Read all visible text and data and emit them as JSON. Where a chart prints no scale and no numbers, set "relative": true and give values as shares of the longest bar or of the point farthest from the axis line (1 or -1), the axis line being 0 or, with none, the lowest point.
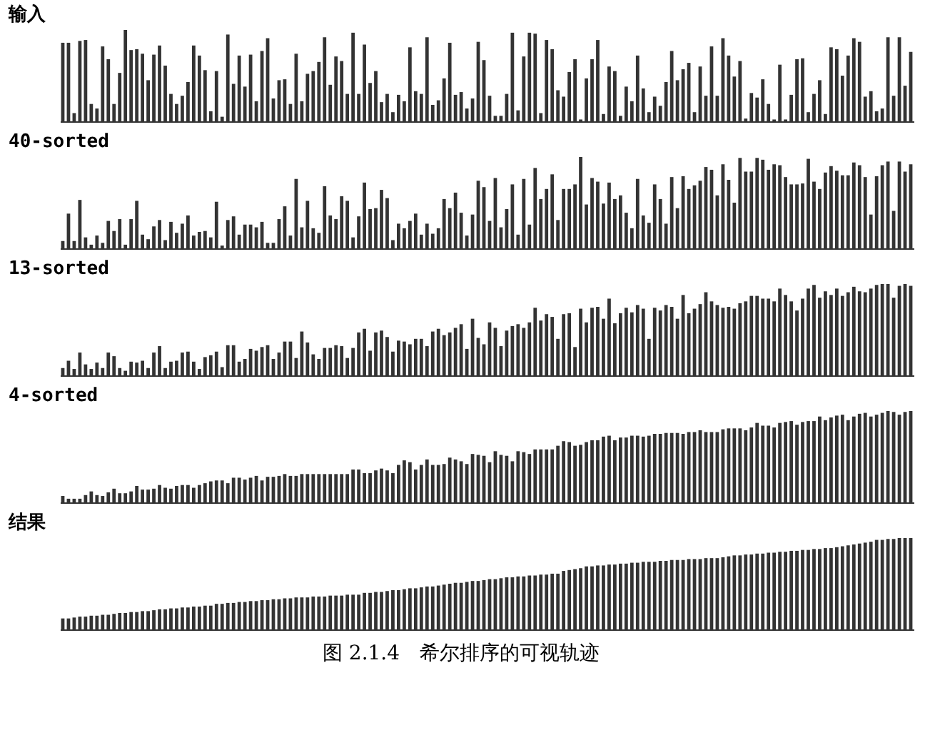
{
  "chart_data": [
    {
      "type": "bar",
      "relative": true,
      "title": "输入",
      "color": "#333333",
      "categories": [
        null,
        null,
        null,
        null,
        null,
        null,
        null,
        null,
        null,
        null,
        null,
        null,
        null,
        null,
        null,
        null,
        null,
        null,
        null,
        null,
        null,
        null,
        null,
        null,
        null,
        null,
        null,
        null,
        null,
        null,
        null,
        null,
        null,
        null,
        null,
        null,
        null,
        null,
        null,
        null,
        null,
        null,
        null,
        null,
        null,
        null,
        null,
        null,
        null,
        null,
        null,
        null,
        null,
        null,
        null,
        null,
        null,
        null,
        null,
        null,
        null,
        null,
        null,
        null,
        null,
        null,
        null,
        null,
        null,
        null,
        null,
        null,
        null,
        null,
        null,
        null,
        null,
        null,
        null,
        null,
        null,
        null,
        null,
        null,
        null,
        null,
        null,
        null,
        null,
        null,
        null,
        null,
        null,
        null,
        null,
        null,
        null,
        null,
        null,
        null,
        null,
        null,
        null,
        null,
        null,
        null,
        null,
        null,
        null,
        null,
        null,
        null,
        null,
        null,
        null,
        null,
        null,
        null,
        null,
        null,
        null,
        null,
        null,
        null,
        null,
        null,
        null,
        null,
        null,
        null,
        null,
        null,
        null,
        null,
        null,
        null,
        null,
        null,
        null,
        null,
        null,
        null,
        null,
        null,
        null,
        null,
        null,
        null,
        null,
        null
      ],
      "values": [
        0.86,
        0.86,
        0.09,
        0.88,
        0.89,
        0.19,
        0.14,
        0.82,
        0.68,
        0.19,
        0.53,
        1,
        0.78,
        0.79,
        0.74,
        0.45,
        0.73,
        0.83,
        0.61,
        0.3,
        0.19,
        0.28,
        0.43,
        0.83,
        0.72,
        0.56,
        0.11,
        0.55,
        0.05,
        0.95,
        0.41,
        0.72,
        0.38,
        0.73,
        0.22,
        0.77,
        0.91,
        0.25,
        0.45,
        0.46,
        0.19,
        0.74,
        0.22,
        0.52,
        0.55,
        0.65,
        0.92,
        0.4,
        0.71,
        0.66,
        0.3,
        0.97,
        0.3,
        0.84,
        0.42,
        0.55,
        0.21,
        0.3,
        0.1,
        0.29,
        0.22,
        0.81,
        0.33,
        0.3,
        0.92,
        0.18,
        0.23,
        0.47,
        0.86,
        0.29,
        0.32,
        0.14,
        0.25,
        0.87,
        0.67,
        0.28,
        0.06,
        0.06,
        0.3,
        0.97,
        0.12,
        0.71,
        0.97,
        0.96,
        0.09,
        0.89,
        0.79,
        0.34,
        0.27,
        0.54,
        0.68,
        0.02,
        0.47,
        0.68,
        0.89,
        0.08,
        0.6,
        0.55,
        0.06,
        0.38,
        0.22,
        0.72,
        0.36,
        0.1,
        0.27,
        0.17,
        0.43,
        0.77,
        0.45,
        0.57,
        0.64,
        0.1,
        0.6,
        0.28,
        0.82,
        0.28,
        0.91,
        0.72,
        0.49,
        0.66,
        0.03,
        0.31,
        0.26,
        0.46,
        0.19,
        0.02,
        0.62,
        0.02,
        0.29,
        0.68,
        0.69,
        0.1,
        0.3,
        0.45,
        0.08,
        0.81,
        0.79,
        0.5,
        0.72,
        0.91,
        0.87,
        0.27,
        0.33,
        0.11,
        0.14,
        0.92,
        0.28,
        0.92,
        0.39,
        0.76
      ]
    },
    {
      "type": "bar",
      "relative": true,
      "title": "40-sorted",
      "color": "#333333",
      "categories": [
        null,
        null,
        null,
        null,
        null,
        null,
        null,
        null,
        null,
        null,
        null,
        null,
        null,
        null,
        null,
        null,
        null,
        null,
        null,
        null,
        null,
        null,
        null,
        null,
        null,
        null,
        null,
        null,
        null,
        null,
        null,
        null,
        null,
        null,
        null,
        null,
        null,
        null,
        null,
        null,
        null,
        null,
        null,
        null,
        null,
        null,
        null,
        null,
        null,
        null,
        null,
        null,
        null,
        null,
        null,
        null,
        null,
        null,
        null,
        null,
        null,
        null,
        null,
        null,
        null,
        null,
        null,
        null,
        null,
        null,
        null,
        null,
        null,
        null,
        null,
        null,
        null,
        null,
        null,
        null,
        null,
        null,
        null,
        null,
        null,
        null,
        null,
        null,
        null,
        null,
        null,
        null,
        null,
        null,
        null,
        null,
        null,
        null,
        null,
        null,
        null,
        null,
        null,
        null,
        null,
        null,
        null,
        null,
        null,
        null,
        null,
        null,
        null,
        null,
        null,
        null,
        null,
        null,
        null,
        null,
        null,
        null,
        null,
        null,
        null,
        null,
        null,
        null,
        null,
        null,
        null,
        null,
        null,
        null,
        null,
        null,
        null,
        null,
        null,
        null,
        null,
        null,
        null,
        null,
        null,
        null,
        null,
        null,
        null,
        null
      ],
      "values": [
        0.08,
        0.38,
        0.08,
        0.53,
        0.12,
        0.04,
        0.14,
        0.06,
        0.3,
        0.19,
        0.32,
        0.04,
        0.32,
        0.52,
        0.15,
        0.1,
        0.24,
        0.31,
        0.09,
        0.29,
        0.17,
        0.27,
        0.36,
        0.14,
        0.18,
        0.19,
        0.12,
        0.51,
        0.03,
        0.31,
        0.35,
        0.15,
        0.26,
        0.26,
        0.23,
        0.29,
        0.06,
        0.06,
        0.32,
        0.46,
        0.14,
        0.76,
        0.23,
        0.52,
        0.22,
        0.17,
        0.68,
        0.36,
        0.32,
        0.57,
        0.52,
        0.12,
        0.35,
        0.72,
        0.43,
        0.44,
        0.64,
        0.55,
        0.09,
        0.27,
        0.22,
        0.3,
        0.38,
        0.15,
        0.27,
        0.16,
        0.22,
        0.54,
        0.44,
        0.61,
        0.39,
        0.14,
        0.37,
        0.74,
        0.67,
        0.3,
        0.77,
        0.23,
        0.43,
        0.7,
        0.15,
        0.76,
        0.26,
        0.88,
        0.54,
        0.65,
        0.81,
        0.31,
        0.65,
        0.65,
        0.7,
        1,
        0.48,
        0.77,
        0.73,
        0.49,
        0.72,
        0.54,
        0.58,
        0.39,
        0.22,
        0.76,
        0.36,
        0.28,
        0.7,
        0.54,
        0.27,
        0.78,
        0.44,
        0.79,
        0.65,
        0.69,
        0.74,
        0.89,
        0.86,
        0.58,
        0.92,
        0.75,
        0.5,
        0.99,
        0.84,
        0.84,
        0.99,
        0.97,
        0.86,
        0.92,
        0.91,
        0.78,
        0.7,
        0.7,
        0.71,
        0.98,
        0.73,
        0.65,
        0.83,
        0.9,
        0.85,
        0.8,
        0.8,
        0.94,
        0.91,
        0.78,
        0.37,
        0.79,
        0.91,
        0.95,
        0.41,
        0.95,
        0.84,
        0.92
      ]
    },
    {
      "type": "bar",
      "relative": true,
      "title": "13-sorted",
      "color": "#333333",
      "categories": [
        null,
        null,
        null,
        null,
        null,
        null,
        null,
        null,
        null,
        null,
        null,
        null,
        null,
        null,
        null,
        null,
        null,
        null,
        null,
        null,
        null,
        null,
        null,
        null,
        null,
        null,
        null,
        null,
        null,
        null,
        null,
        null,
        null,
        null,
        null,
        null,
        null,
        null,
        null,
        null,
        null,
        null,
        null,
        null,
        null,
        null,
        null,
        null,
        null,
        null,
        null,
        null,
        null,
        null,
        null,
        null,
        null,
        null,
        null,
        null,
        null,
        null,
        null,
        null,
        null,
        null,
        null,
        null,
        null,
        null,
        null,
        null,
        null,
        null,
        null,
        null,
        null,
        null,
        null,
        null,
        null,
        null,
        null,
        null,
        null,
        null,
        null,
        null,
        null,
        null,
        null,
        null,
        null,
        null,
        null,
        null,
        null,
        null,
        null,
        null,
        null,
        null,
        null,
        null,
        null,
        null,
        null,
        null,
        null,
        null,
        null,
        null,
        null,
        null,
        null,
        null,
        null,
        null,
        null,
        null,
        null,
        null,
        null,
        null,
        null,
        null,
        null,
        null,
        null,
        null,
        null,
        null,
        null,
        null,
        null,
        null,
        null,
        null,
        null,
        null,
        null,
        null,
        null,
        null,
        null,
        null,
        null,
        null,
        null,
        null
      ],
      "values": [
        0.08,
        0.16,
        0.07,
        0.25,
        0.12,
        0.07,
        0.14,
        0.08,
        0.25,
        0.21,
        0.08,
        0.05,
        0.15,
        0.14,
        0.16,
        0.08,
        0.25,
        0.32,
        0.08,
        0.15,
        0.16,
        0.25,
        0.26,
        0.15,
        0.07,
        0.2,
        0.22,
        0.26,
        0.09,
        0.33,
        0.33,
        0.15,
        0.18,
        0.29,
        0.27,
        0.31,
        0.33,
        0.18,
        0.25,
        0.37,
        0.37,
        0.19,
        0.48,
        0.36,
        0.23,
        0.18,
        0.3,
        0.3,
        0.33,
        0.32,
        0.19,
        0.3,
        0.47,
        0.51,
        0.27,
        0.47,
        0.49,
        0.42,
        0.26,
        0.38,
        0.37,
        0.34,
        0.4,
        0.4,
        0.32,
        0.48,
        0.51,
        0.44,
        0.47,
        0.52,
        0.56,
        0.29,
        0.62,
        0.41,
        0.34,
        0.58,
        0.52,
        0.32,
        0.49,
        0.54,
        0.56,
        0.52,
        0.58,
        0.74,
        0.6,
        0.67,
        0.64,
        0.4,
        0.67,
        0.68,
        0.31,
        0.73,
        0.58,
        0.74,
        0.75,
        0.62,
        0.84,
        0.57,
        0.68,
        0.74,
        0.69,
        0.77,
        0.73,
        0.4,
        0.74,
        0.71,
        0.77,
        0.75,
        0.62,
        0.88,
        0.68,
        0.73,
        0.78,
        0.91,
        0.81,
        0.77,
        0.74,
        0.75,
        0.73,
        0.79,
        0.81,
        0.87,
        0.87,
        0.84,
        0.84,
        0.81,
        0.95,
        0.88,
        0.81,
        0.71,
        0.84,
        0.95,
        0.99,
        0.85,
        0.92,
        0.88,
        0.95,
        0.87,
        0.91,
        0.97,
        0.92,
        0.91,
        0.95,
        0.99,
        1,
        1,
        0.85,
        0.98,
        1,
        0.98
      ]
    },
    {
      "type": "bar",
      "relative": true,
      "title": "4-sorted",
      "color": "#333333",
      "categories": [
        null,
        null,
        null,
        null,
        null,
        null,
        null,
        null,
        null,
        null,
        null,
        null,
        null,
        null,
        null,
        null,
        null,
        null,
        null,
        null,
        null,
        null,
        null,
        null,
        null,
        null,
        null,
        null,
        null,
        null,
        null,
        null,
        null,
        null,
        null,
        null,
        null,
        null,
        null,
        null,
        null,
        null,
        null,
        null,
        null,
        null,
        null,
        null,
        null,
        null,
        null,
        null,
        null,
        null,
        null,
        null,
        null,
        null,
        null,
        null,
        null,
        null,
        null,
        null,
        null,
        null,
        null,
        null,
        null,
        null,
        null,
        null,
        null,
        null,
        null,
        null,
        null,
        null,
        null,
        null,
        null,
        null,
        null,
        null,
        null,
        null,
        null,
        null,
        null,
        null,
        null,
        null,
        null,
        null,
        null,
        null,
        null,
        null,
        null,
        null,
        null,
        null,
        null,
        null,
        null,
        null,
        null,
        null,
        null,
        null,
        null,
        null,
        null,
        null,
        null,
        null,
        null,
        null,
        null,
        null,
        null,
        null,
        null,
        null,
        null,
        null,
        null,
        null,
        null,
        null,
        null,
        null,
        null,
        null,
        null,
        null,
        null,
        null,
        null,
        null,
        null,
        null,
        null,
        null,
        null,
        null,
        null,
        null,
        null,
        null
      ],
      "values": [
        0.07,
        0.04,
        0.04,
        0.04,
        0.08,
        0.12,
        0.08,
        0.07,
        0.11,
        0.15,
        0.1,
        0.1,
        0.12,
        0.18,
        0.14,
        0.14,
        0.15,
        0.19,
        0.16,
        0.15,
        0.18,
        0.19,
        0.19,
        0.16,
        0.19,
        0.21,
        0.23,
        0.24,
        0.24,
        0.21,
        0.27,
        0.27,
        0.25,
        0.27,
        0.29,
        0.24,
        0.28,
        0.28,
        0.29,
        0.31,
        0.29,
        0.29,
        0.31,
        0.31,
        0.31,
        0.31,
        0.31,
        0.31,
        0.31,
        0.31,
        0.31,
        0.36,
        0.36,
        0.32,
        0.32,
        0.35,
        0.37,
        0.35,
        0.32,
        0.41,
        0.46,
        0.44,
        0.36,
        0.41,
        0.47,
        0.41,
        0.41,
        0.42,
        0.49,
        0.47,
        0.45,
        0.42,
        0.53,
        0.52,
        0.51,
        0.44,
        0.56,
        0.52,
        0.51,
        0.45,
        0.56,
        0.55,
        0.53,
        0.58,
        0.58,
        0.58,
        0.58,
        0.62,
        0.67,
        0.66,
        0.62,
        0.63,
        0.66,
        0.68,
        0.68,
        0.72,
        0.73,
        0.68,
        0.71,
        0.71,
        0.73,
        0.73,
        0.72,
        0.73,
        0.75,
        0.75,
        0.76,
        0.76,
        0.76,
        0.75,
        0.77,
        0.77,
        0.79,
        0.77,
        0.77,
        0.77,
        0.8,
        0.81,
        0.81,
        0.81,
        0.79,
        0.82,
        0.87,
        0.84,
        0.84,
        0.82,
        0.87,
        0.88,
        0.89,
        0.85,
        0.88,
        0.89,
        0.89,
        0.94,
        0.9,
        0.93,
        0.95,
        0.96,
        0.9,
        0.94,
        0.97,
        0.98,
        0.94,
        0.96,
        0.98,
        1,
        0.99,
        0.96,
        0.99,
        1
      ]
    },
    {
      "type": "bar",
      "relative": true,
      "title": "结果",
      "color": "#333333",
      "annotations": [
        "图 2.1.4　希尔排序的可视轨迹"
      ],
      "categories": [
        null,
        null,
        null,
        null,
        null,
        null,
        null,
        null,
        null,
        null,
        null,
        null,
        null,
        null,
        null,
        null,
        null,
        null,
        null,
        null,
        null,
        null,
        null,
        null,
        null,
        null,
        null,
        null,
        null,
        null,
        null,
        null,
        null,
        null,
        null,
        null,
        null,
        null,
        null,
        null,
        null,
        null,
        null,
        null,
        null,
        null,
        null,
        null,
        null,
        null,
        null,
        null,
        null,
        null,
        null,
        null,
        null,
        null,
        null,
        null,
        null,
        null,
        null,
        null,
        null,
        null,
        null,
        null,
        null,
        null,
        null,
        null,
        null,
        null,
        null,
        null,
        null,
        null,
        null,
        null,
        null,
        null,
        null,
        null,
        null,
        null,
        null,
        null,
        null,
        null,
        null,
        null,
        null,
        null,
        null,
        null,
        null,
        null,
        null,
        null,
        null,
        null,
        null,
        null,
        null,
        null,
        null,
        null,
        null,
        null,
        null,
        null,
        null,
        null,
        null,
        null,
        null,
        null,
        null,
        null,
        null,
        null,
        null,
        null,
        null,
        null,
        null,
        null,
        null,
        null,
        null,
        null,
        null,
        null,
        null,
        null,
        null,
        null,
        null,
        null,
        null,
        null,
        null,
        null,
        null,
        null,
        null,
        null,
        null,
        null
      ],
      "values": [
        0.12,
        0.12,
        0.13,
        0.14,
        0.14,
        0.15,
        0.15,
        0.16,
        0.16,
        0.17,
        0.18,
        0.18,
        0.19,
        0.19,
        0.2,
        0.2,
        0.21,
        0.22,
        0.22,
        0.23,
        0.23,
        0.24,
        0.24,
        0.25,
        0.25,
        0.26,
        0.26,
        0.28,
        0.28,
        0.29,
        0.29,
        0.3,
        0.3,
        0.31,
        0.31,
        0.32,
        0.32,
        0.33,
        0.33,
        0.34,
        0.34,
        0.35,
        0.35,
        0.35,
        0.36,
        0.36,
        0.36,
        0.37,
        0.37,
        0.37,
        0.38,
        0.38,
        0.38,
        0.4,
        0.4,
        0.41,
        0.41,
        0.42,
        0.43,
        0.43,
        0.44,
        0.45,
        0.45,
        0.46,
        0.47,
        0.47,
        0.48,
        0.49,
        0.5,
        0.51,
        0.51,
        0.52,
        0.53,
        0.53,
        0.54,
        0.55,
        0.55,
        0.56,
        0.57,
        0.57,
        0.58,
        0.58,
        0.59,
        0.59,
        0.6,
        0.6,
        0.61,
        0.61,
        0.64,
        0.65,
        0.66,
        0.67,
        0.69,
        0.69,
        0.7,
        0.7,
        0.71,
        0.71,
        0.72,
        0.72,
        0.73,
        0.73,
        0.74,
        0.74,
        0.74,
        0.75,
        0.75,
        0.76,
        0.76,
        0.76,
        0.77,
        0.77,
        0.77,
        0.78,
        0.78,
        0.78,
        0.79,
        0.8,
        0.81,
        0.81,
        0.82,
        0.82,
        0.83,
        0.83,
        0.84,
        0.84,
        0.85,
        0.85,
        0.86,
        0.86,
        0.87,
        0.87,
        0.88,
        0.88,
        0.89,
        0.89,
        0.9,
        0.91,
        0.92,
        0.93,
        0.94,
        0.95,
        0.96,
        0.98,
        0.98,
        0.99,
        0.99,
        1,
        1,
        1
      ]
    }
  ]
}
